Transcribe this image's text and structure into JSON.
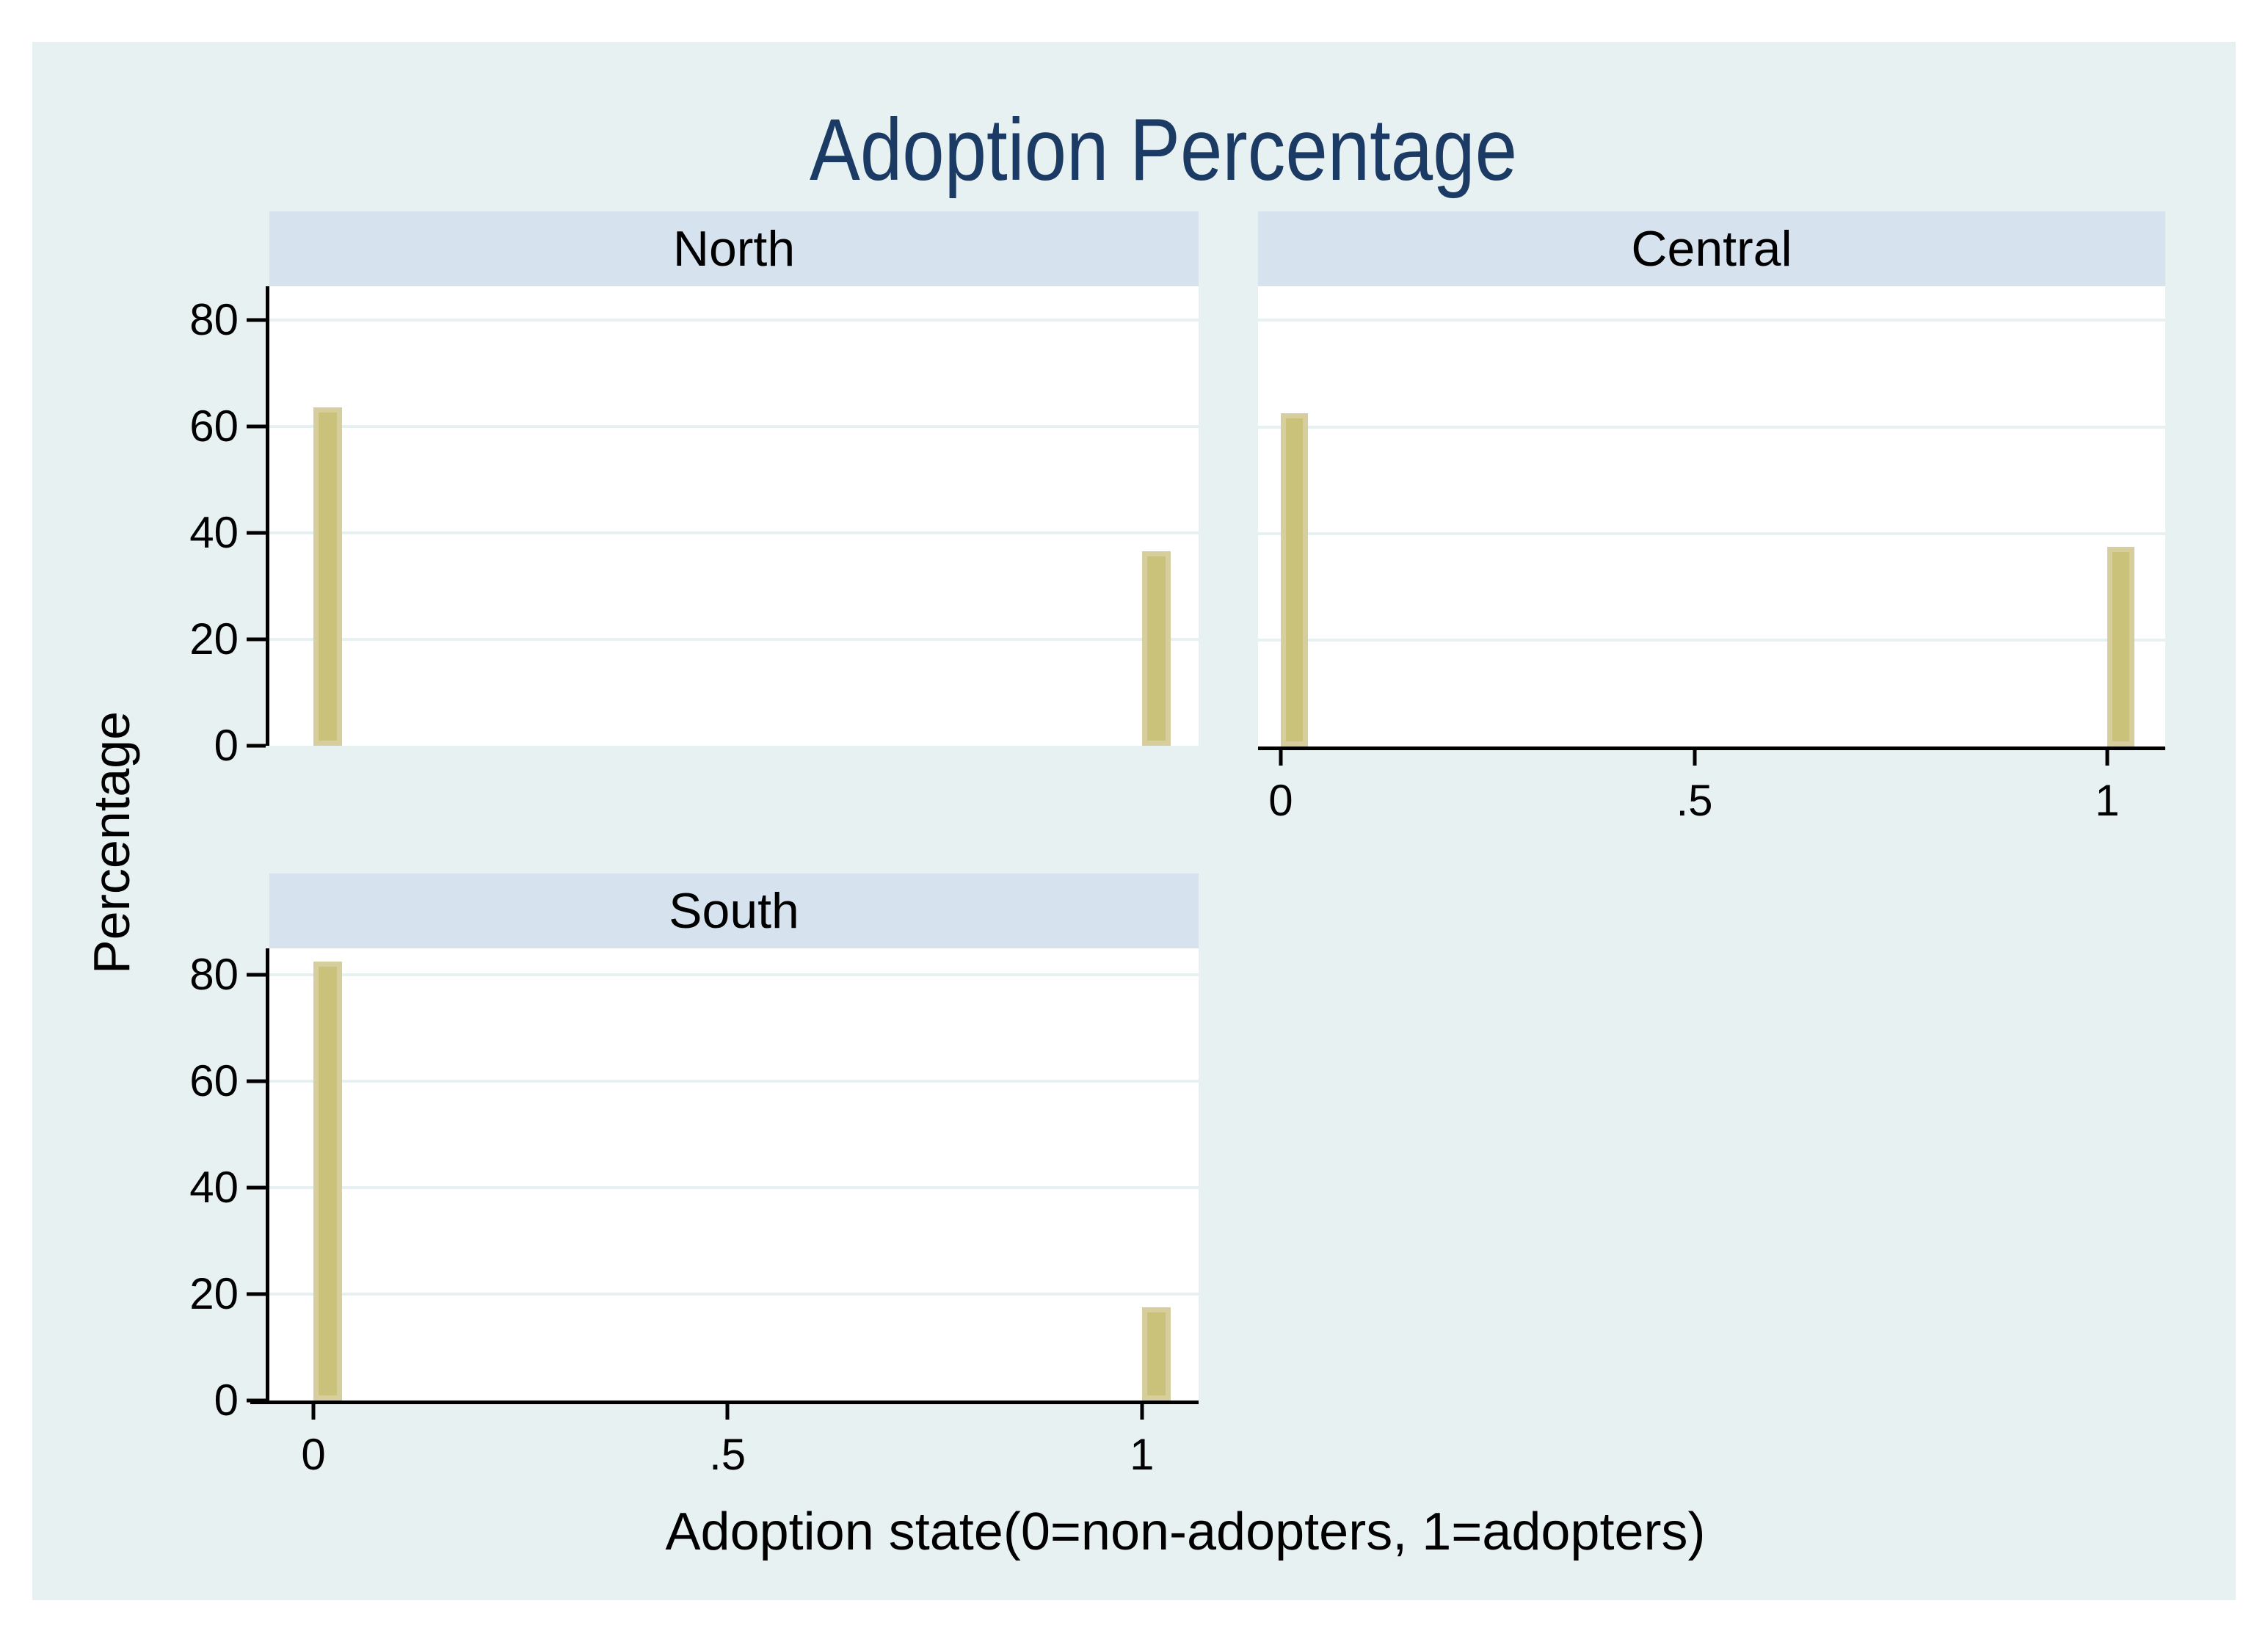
{
  "title": {
    "text": "Adoption Percentage"
  },
  "axis": {
    "y_title": "Percentage",
    "x_title": "Adoption state(0=non-adopters, 1=adopters)",
    "y_tick_values": [
      0,
      20,
      40,
      60,
      80
    ],
    "y_tick_labels": [
      "0",
      "20",
      "40",
      "60",
      "80"
    ],
    "x_tick_values": [
      0,
      0.5,
      1
    ],
    "x_tick_labels": [
      "0",
      ".5",
      "1"
    ]
  },
  "colors": {
    "figure_bg": "#e8f1f2",
    "panel_header_bg": "#d6e3ee",
    "plot_bg": "#ffffff",
    "gridline": "#e8f1f1",
    "bar_fill": "#cac17b",
    "bar_border": "#d6cf9d",
    "axis_line": "#000000",
    "title_color": "#1b3a64",
    "text_color": "#000000"
  },
  "chart_data": {
    "type": "bar",
    "title": "Adoption Percentage",
    "xlabel": "Adoption state(0=non-adopters, 1=adopters)",
    "ylabel": "Percentage",
    "categories": [
      0,
      1
    ],
    "grid": true,
    "legend_position": "none",
    "panels": [
      {
        "title": "North",
        "values": [
          63.5,
          36.5
        ],
        "ylim": [
          0,
          86.3
        ]
      },
      {
        "title": "Central",
        "values": [
          62.5,
          37.5
        ],
        "ylim": [
          0,
          86.4
        ]
      },
      {
        "title": "South",
        "values": [
          82.5,
          17.5
        ],
        "ylim": [
          0,
          85.0
        ]
      }
    ]
  }
}
